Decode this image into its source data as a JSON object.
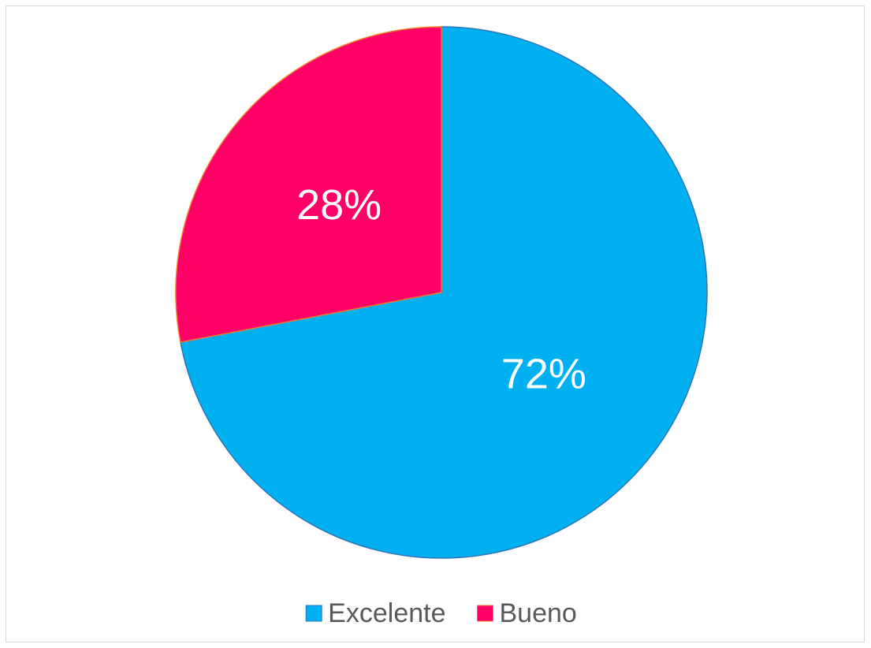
{
  "chart_data": {
    "type": "pie",
    "categories": [
      "Excelente",
      "Bueno"
    ],
    "values": [
      72,
      28
    ],
    "value_labels": [
      "72%",
      "28%"
    ],
    "colors": [
      "#00b0f0",
      "#ff0066"
    ],
    "legend": "bottom"
  }
}
